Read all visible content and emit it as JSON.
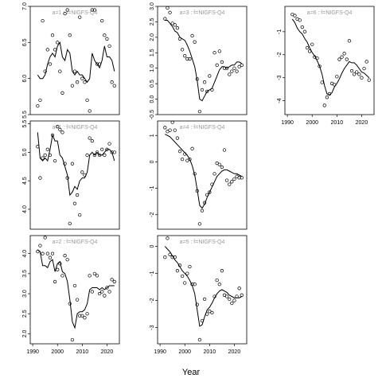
{
  "figure": {
    "xlabel": "Year"
  },
  "chart_data": [
    {
      "type": "scatter",
      "title": "a=1 : f=NIGFS-Q4",
      "xlabel": "Year",
      "xlim": [
        1989,
        2025
      ],
      "ylim": [
        5.5,
        7.0
      ],
      "yticks": [
        "5.5",
        "6.0",
        "6.5",
        "7.0"
      ],
      "xticks": [],
      "observations": {
        "x": [
          1992,
          1993,
          1994,
          1995,
          1996,
          1997,
          1998,
          1999,
          2000,
          2001,
          2002,
          2003,
          2004,
          2005,
          2006,
          2007,
          2008,
          2009,
          2010,
          2011,
          2012,
          2013,
          2014,
          2015,
          2016,
          2017,
          2018,
          2019,
          2020,
          2021,
          2022,
          2023
        ],
        "y": [
          5.62,
          5.7,
          6.8,
          6.1,
          6.4,
          6.2,
          6.6,
          6.4,
          6.5,
          6.1,
          5.8,
          6.9,
          6.95,
          6.6,
          5.9,
          6.1,
          5.95,
          6.85,
          6.0,
          5.95,
          5.7,
          5.55,
          6.95,
          6.95,
          6.2,
          6.2,
          6.8,
          6.6,
          6.55,
          6.45,
          5.95,
          5.9
        ]
      },
      "fit": {
        "x": [
          1992,
          1993,
          1994,
          1995,
          1996,
          1997,
          1998,
          1999,
          2000,
          2001,
          2002,
          2003,
          2004,
          2005,
          2006,
          2007,
          2008,
          2009,
          2010,
          2011,
          2012,
          2013,
          2014,
          2015,
          2016,
          2017,
          2018,
          2019,
          2020,
          2021,
          2022,
          2023
        ],
        "y": [
          6.05,
          6.0,
          6.0,
          6.05,
          6.2,
          6.3,
          6.35,
          6.3,
          6.45,
          6.5,
          6.3,
          6.25,
          6.4,
          6.35,
          6.1,
          6.05,
          6.1,
          6.05,
          6.05,
          6.0,
          5.95,
          6.0,
          6.35,
          6.25,
          6.2,
          6.15,
          6.25,
          6.45,
          6.3,
          6.3,
          6.25,
          6.1
        ]
      }
    },
    {
      "type": "scatter",
      "title": "a=3 : f=NIGFS-Q4",
      "xlabel": "Year",
      "xlim": [
        1989,
        2025
      ],
      "ylim": [
        -0.5,
        3.0
      ],
      "yticks": [
        "-0.5",
        "0.0",
        "0.5",
        "1.0",
        "1.5",
        "2.0",
        "2.5",
        "3.0"
      ],
      "xticks": [],
      "observations": {
        "x": [
          1992,
          1993,
          1994,
          1995,
          1996,
          1997,
          1998,
          1999,
          2000,
          2001,
          2002,
          2003,
          2004,
          2005,
          2006,
          2007,
          2008,
          2009,
          2010,
          2011,
          2012,
          2013,
          2014,
          2015,
          2016,
          2017,
          2018,
          2019,
          2020,
          2021,
          2022,
          2023
        ],
        "y": [
          2.6,
          2.95,
          2.8,
          2.45,
          2.4,
          2.3,
          1.95,
          1.6,
          1.4,
          1.3,
          1.3,
          2.05,
          1.85,
          0.65,
          -0.4,
          0.3,
          0.55,
          0.25,
          0.75,
          0.3,
          1.5,
          1.1,
          1.55,
          1.2,
          1.0,
          1.0,
          0.8,
          0.9,
          1.0,
          0.9,
          1.05,
          1.1
        ]
      },
      "fit": {
        "x": [
          1992,
          1993,
          1994,
          1995,
          1996,
          1997,
          1998,
          1999,
          2000,
          2001,
          2002,
          2003,
          2004,
          2005,
          2006,
          2007,
          2008,
          2009,
          2010,
          2011,
          2012,
          2013,
          2014,
          2015,
          2016,
          2017,
          2018,
          2019,
          2020,
          2021,
          2022,
          2023
        ],
        "y": [
          2.55,
          2.55,
          2.45,
          2.35,
          2.2,
          2.15,
          2.0,
          1.95,
          1.9,
          1.75,
          1.55,
          1.3,
          1.05,
          0.6,
          0.0,
          -0.05,
          0.1,
          0.25,
          0.3,
          0.35,
          0.55,
          0.75,
          0.95,
          1.05,
          1.05,
          1.0,
          1.05,
          1.1,
          1.1,
          1.2,
          1.2,
          1.15
        ]
      }
    },
    {
      "type": "scatter",
      "title": "a=6 : f=NIGFS-Q4",
      "xlabel": "Year",
      "xlim": [
        1989,
        2025
      ],
      "ylim": [
        -4.6,
        0.1
      ],
      "yticks": [
        "-1",
        "-2",
        "-3",
        "-4"
      ],
      "xticks": [
        "1990",
        "2000",
        "2010",
        "2020"
      ],
      "observations": {
        "x": [
          1992,
          1993,
          1994,
          1995,
          1996,
          1997,
          1998,
          1999,
          2000,
          2001,
          2002,
          2003,
          2004,
          2005,
          2006,
          2007,
          2008,
          2009,
          2010,
          2011,
          2012,
          2013,
          2014,
          2015,
          2016,
          2017,
          2018,
          2019,
          2020,
          2021,
          2022,
          2023
        ],
        "y": [
          -0.25,
          -0.3,
          -0.45,
          -0.5,
          -0.8,
          -1.0,
          -1.7,
          -1.85,
          -1.55,
          -2.1,
          -2.15,
          -2.5,
          -3.2,
          -4.2,
          -3.85,
          -3.7,
          -3.25,
          -3.3,
          -2.95,
          -2.2,
          -2.1,
          -1.95,
          -2.2,
          -1.4,
          -2.7,
          -2.85,
          -2.75,
          -2.85,
          -3.0,
          -2.6,
          -2.3,
          -3.1
        ]
      },
      "fit": {
        "x": [
          1992,
          1993,
          1994,
          1995,
          1996,
          1997,
          1998,
          1999,
          2000,
          2001,
          2002,
          2003,
          2004,
          2005,
          2006,
          2007,
          2008,
          2009,
          2010,
          2011,
          2012,
          2013,
          2014,
          2015,
          2016,
          2017,
          2018,
          2019,
          2020,
          2021,
          2022,
          2023
        ],
        "y": [
          -0.45,
          -0.6,
          -0.85,
          -1.0,
          -1.1,
          -1.3,
          -1.45,
          -1.7,
          -1.9,
          -2.05,
          -2.25,
          -2.5,
          -2.85,
          -3.35,
          -3.7,
          -3.75,
          -3.65,
          -3.4,
          -3.25,
          -3.05,
          -2.8,
          -2.6,
          -2.45,
          -2.3,
          -2.35,
          -2.35,
          -2.45,
          -2.6,
          -2.75,
          -2.8,
          -2.9,
          -3.0
        ]
      }
    },
    {
      "type": "scatter",
      "title": "a=1 : f=NIGFS-Q4",
      "xlabel": "Year",
      "xlim": [
        1989,
        2025
      ],
      "ylim": [
        3.65,
        5.55
      ],
      "yticks": [
        "4.0",
        "4.5",
        "5.0",
        "5.5"
      ],
      "xticks": [],
      "observations": {
        "x": [
          1992,
          1993,
          1994,
          1995,
          1996,
          1997,
          1998,
          1999,
          2000,
          2001,
          2002,
          2003,
          2004,
          2005,
          2006,
          2007,
          2008,
          2009,
          2010,
          2011,
          2012,
          2013,
          2014,
          2015,
          2016,
          2017,
          2018,
          2019,
          2020,
          2021,
          2022,
          2023
        ],
        "y": [
          5.1,
          4.55,
          4.9,
          4.95,
          5.05,
          4.95,
          5.3,
          4.85,
          5.45,
          5.4,
          5.35,
          4.8,
          4.55,
          3.75,
          4.8,
          4.1,
          4.25,
          3.9,
          4.65,
          4.6,
          4.95,
          5.25,
          5.2,
          4.95,
          5.0,
          4.95,
          5.05,
          4.95,
          5.05,
          5.15,
          5.0,
          5.0
        ]
      },
      "fit": {
        "x": [
          1992,
          1993,
          1994,
          1995,
          1996,
          1997,
          1998,
          1999,
          2000,
          2001,
          2002,
          2003,
          2004,
          2005,
          2006,
          2007,
          2008,
          2009,
          2010,
          2011,
          2012,
          2013,
          2014,
          2015,
          2016,
          2017,
          2018,
          2019,
          2020,
          2021,
          2022,
          2023
        ],
        "y": [
          5.35,
          4.9,
          4.85,
          4.9,
          4.85,
          5.05,
          5.3,
          5.2,
          5.2,
          4.95,
          4.9,
          4.75,
          4.6,
          4.25,
          4.3,
          4.4,
          4.35,
          4.5,
          4.55,
          4.55,
          4.65,
          4.95,
          5.0,
          4.95,
          5.0,
          4.95,
          4.95,
          5.0,
          5.05,
          5.05,
          5.0,
          4.85
        ]
      }
    },
    {
      "type": "scatter",
      "title": "a=4 : f=NIGFS-Q4",
      "xlabel": "Year",
      "xlim": [
        1989,
        2025
      ],
      "ylim": [
        -2.55,
        1.55
      ],
      "yticks": [
        "-2",
        "-1",
        "0",
        "1"
      ],
      "xticks": [],
      "observations": {
        "x": [
          1992,
          1993,
          1994,
          1995,
          1996,
          1997,
          1998,
          1999,
          2000,
          2001,
          2002,
          2003,
          2004,
          2005,
          2006,
          2007,
          2008,
          2009,
          2010,
          2011,
          2012,
          2013,
          2014,
          2015,
          2016,
          2017,
          2018,
          2019,
          2020,
          2021,
          2022,
          2023
        ],
        "y": [
          1.3,
          1.15,
          1.2,
          1.5,
          1.2,
          0.9,
          0.4,
          0.1,
          0.3,
          0.05,
          0.1,
          0.5,
          -0.45,
          -1.1,
          -2.35,
          -1.85,
          -1.55,
          -1.25,
          -1.15,
          -0.85,
          -0.45,
          -0.05,
          -0.1,
          -0.2,
          0.45,
          -0.7,
          -0.85,
          -0.75,
          -0.65,
          -0.55,
          -0.6,
          -0.6
        ]
      },
      "fit": {
        "x": [
          1992,
          1993,
          1994,
          1995,
          1996,
          1997,
          1998,
          1999,
          2000,
          2001,
          2002,
          2003,
          2004,
          2005,
          2006,
          2007,
          2008,
          2009,
          2010,
          2011,
          2012,
          2013,
          2014,
          2015,
          2016,
          2017,
          2018,
          2019,
          2020,
          2021,
          2022,
          2023
        ],
        "y": [
          1.05,
          1.0,
          0.95,
          0.85,
          0.75,
          0.65,
          0.55,
          0.45,
          0.35,
          0.25,
          0.1,
          -0.15,
          -0.5,
          -1.05,
          -1.65,
          -1.75,
          -1.6,
          -1.35,
          -1.15,
          -0.95,
          -0.75,
          -0.55,
          -0.45,
          -0.35,
          -0.3,
          -0.3,
          -0.35,
          -0.4,
          -0.45,
          -0.45,
          -0.5,
          -0.55
        ]
      }
    },
    {
      "type": "scatter",
      "title": "a=2 : f=NIGFS-Q4",
      "xlabel": "Year",
      "xlim": [
        1989,
        2025
      ],
      "ylim": [
        1.75,
        4.45
      ],
      "yticks": [
        "2.0",
        "2.5",
        "3.0",
        "3.5",
        "4.0"
      ],
      "xticks": [
        "1990",
        "2000",
        "2010",
        "2020"
      ],
      "observations": {
        "x": [
          1992,
          1993,
          1994,
          1995,
          1996,
          1997,
          1998,
          1999,
          2000,
          2001,
          2002,
          2003,
          2004,
          2005,
          2006,
          2007,
          2008,
          2009,
          2010,
          2011,
          2012,
          2013,
          2014,
          2015,
          2016,
          2017,
          2018,
          2019,
          2020,
          2021,
          2022,
          2023
        ],
        "y": [
          4.05,
          4.2,
          4.0,
          4.4,
          4.0,
          3.9,
          4.0,
          3.3,
          3.6,
          3.75,
          3.45,
          3.95,
          3.85,
          2.75,
          1.85,
          3.2,
          2.85,
          2.45,
          2.45,
          2.4,
          2.5,
          3.45,
          3.05,
          3.5,
          3.45,
          3.0,
          3.05,
          2.95,
          3.15,
          3.05,
          3.35,
          3.3
        ]
      },
      "fit": {
        "x": [
          1992,
          1993,
          1994,
          1995,
          1996,
          1997,
          1998,
          1999,
          2000,
          2001,
          2002,
          2003,
          2004,
          2005,
          2006,
          2007,
          2008,
          2009,
          2010,
          2011,
          2012,
          2013,
          2014,
          2015,
          2016,
          2017,
          2018,
          2019,
          2020,
          2021,
          2022,
          2023
        ],
        "y": [
          4.1,
          4.05,
          3.7,
          3.7,
          3.65,
          3.8,
          3.85,
          3.55,
          3.75,
          3.8,
          3.55,
          3.5,
          3.3,
          2.85,
          2.3,
          2.15,
          2.5,
          2.55,
          2.55,
          2.6,
          2.75,
          3.1,
          3.15,
          3.15,
          3.15,
          3.1,
          3.15,
          3.1,
          3.15,
          3.2,
          3.2,
          3.2
        ]
      }
    },
    {
      "type": "scatter",
      "title": "a=5 : f=NIGFS-Q4",
      "xlabel": "Year",
      "xlim": [
        1989,
        2025
      ],
      "ylim": [
        -3.6,
        0.4
      ],
      "yticks": [
        "-3",
        "-2",
        "-1",
        "0"
      ],
      "xticks": [
        "1990",
        "2000",
        "2010",
        "2020"
      ],
      "observations": {
        "x": [
          1992,
          1993,
          1994,
          1995,
          1996,
          1997,
          1998,
          1999,
          2000,
          2001,
          2002,
          2003,
          2004,
          2005,
          2006,
          2007,
          2008,
          2009,
          2010,
          2011,
          2012,
          2013,
          2014,
          2015,
          2016,
          2017,
          2018,
          2019,
          2020,
          2021,
          2022,
          2023
        ],
        "y": [
          -0.4,
          0.3,
          -0.3,
          -0.4,
          -0.4,
          -0.9,
          -0.7,
          -1.1,
          -1.35,
          -1.0,
          -0.75,
          -1.4,
          -1.4,
          -2.15,
          -3.45,
          -2.75,
          -1.95,
          -2.5,
          -2.4,
          -2.45,
          -1.85,
          -1.25,
          -1.4,
          -0.9,
          -1.8,
          -1.85,
          -1.95,
          -2.1,
          -2.0,
          -1.85,
          -1.55,
          -1.8
        ]
      },
      "fit": {
        "x": [
          1992,
          1993,
          1994,
          1995,
          1996,
          1997,
          1998,
          1999,
          2000,
          2001,
          2002,
          2003,
          2004,
          2005,
          2006,
          2007,
          2008,
          2009,
          2010,
          2011,
          2012,
          2013,
          2014,
          2015,
          2016,
          2017,
          2018,
          2019,
          2020,
          2021,
          2022,
          2023
        ],
        "y": [
          0.0,
          -0.1,
          -0.2,
          -0.35,
          -0.5,
          -0.6,
          -0.75,
          -0.9,
          -1.0,
          -1.1,
          -1.25,
          -1.45,
          -1.75,
          -2.35,
          -2.95,
          -2.9,
          -2.6,
          -2.35,
          -2.25,
          -2.1,
          -1.9,
          -1.75,
          -1.65,
          -1.6,
          -1.65,
          -1.7,
          -1.8,
          -1.85,
          -1.9,
          -1.9,
          -1.9,
          -1.85
        ]
      }
    }
  ]
}
